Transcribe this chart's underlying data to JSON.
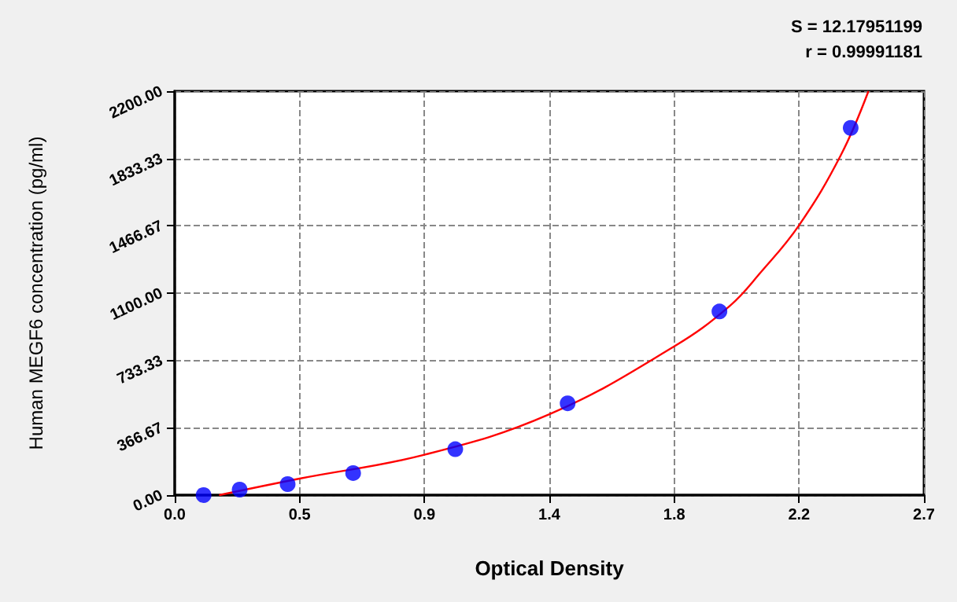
{
  "chart_data": {
    "type": "scatter",
    "xlabel": "Optical Density",
    "ylabel": "Human MEGF6 concentration (pg/ml)",
    "annotations": [
      "S = 12.17951199",
      "r = 0.99991181"
    ],
    "series": [
      {
        "color": "#0000ff",
        "marker": "circle",
        "x": [
          0.104,
          0.234,
          0.407,
          0.643,
          1.011,
          1.416,
          1.963,
          2.436
        ],
        "values": [
          0,
          30,
          60,
          120,
          250,
          500,
          1000,
          2000
        ]
      },
      {
        "type": "line",
        "color": "#ff0000",
        "marker": "none",
        "x": [
          0.16,
          0.45,
          0.9,
          1.35,
          1.8,
          2.0,
          2.11,
          2.25,
          2.4,
          2.5
        ],
        "values": [
          0,
          90,
          220,
          440,
          810,
          1030,
          1210,
          1470,
          1850,
          2200
        ]
      }
    ],
    "xlim": [
      0,
      2.7
    ],
    "xticks": [
      {
        "value": 0,
        "label": "0.0"
      },
      {
        "value": 0.45,
        "label": "0.5"
      },
      {
        "value": 0.9,
        "label": "0.9"
      },
      {
        "value": 1.35,
        "label": "1.4"
      },
      {
        "value": 1.8,
        "label": "1.8"
      },
      {
        "value": 2.25,
        "label": "2.2"
      },
      {
        "value": 2.7,
        "label": "2.7"
      }
    ],
    "ylim": [
      0,
      2200
    ],
    "yticks": [
      {
        "value": 0,
        "label": "0.00"
      },
      {
        "value": 366.67,
        "label": "366.67"
      },
      {
        "value": 733.33,
        "label": "733.33"
      },
      {
        "value": 1100,
        "label": "1100.00"
      },
      {
        "value": 1466.67,
        "label": "1466.67"
      },
      {
        "value": 1833.33,
        "label": "1833.33"
      },
      {
        "value": 2200,
        "label": "2200.00"
      }
    ],
    "grid": true
  }
}
